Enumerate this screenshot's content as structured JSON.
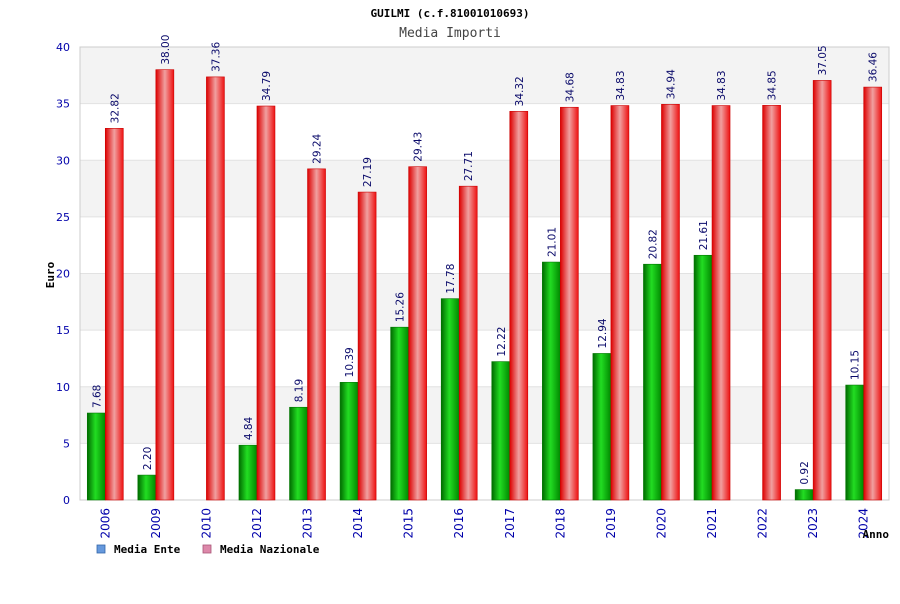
{
  "chart_data": {
    "type": "bar",
    "title": "GUILMI (c.f.81001010693)",
    "subtitle": "Media Importi",
    "xlabel": "Anno",
    "ylabel": "Euro",
    "ylim": [
      0,
      40
    ],
    "yticks": [
      0,
      5,
      10,
      15,
      20,
      25,
      30,
      35,
      40
    ],
    "grid": true,
    "legend_position": "bottom-left",
    "categories": [
      "2006",
      "2009",
      "2010",
      "2012",
      "2013",
      "2014",
      "2015",
      "2016",
      "2017",
      "2018",
      "2019",
      "2020",
      "2021",
      "2022",
      "2023",
      "2024"
    ],
    "series": [
      {
        "name": "Media Ente",
        "color": "#00aa00",
        "legend_color": "#6699dd",
        "values": [
          7.68,
          2.2,
          null,
          4.84,
          8.19,
          10.39,
          15.26,
          17.78,
          12.22,
          21.01,
          12.94,
          20.82,
          21.61,
          null,
          0.92,
          10.15
        ],
        "labels": [
          "7.68",
          "2.20",
          "",
          "4.84",
          "8.19",
          "10.39",
          "15.26",
          "17.78",
          "12.22",
          "21.01",
          "12.94",
          "20.82",
          "21.61",
          "",
          "0.92",
          "10.15"
        ]
      },
      {
        "name": "Media Nazionale",
        "color": "#ee1111",
        "legend_color": "#dd88aa",
        "values": [
          32.82,
          38.0,
          37.36,
          34.79,
          29.24,
          27.19,
          29.43,
          27.71,
          34.32,
          34.68,
          34.83,
          34.94,
          34.83,
          34.85,
          37.05,
          36.46
        ],
        "labels": [
          "32.82",
          "38.00",
          "37.36",
          "34.79",
          "29.24",
          "27.19",
          "29.43",
          "27.71",
          "34.32",
          "34.68",
          "34.83",
          "34.94",
          "34.83",
          "34.85",
          "37.05",
          "36.46"
        ]
      }
    ]
  }
}
